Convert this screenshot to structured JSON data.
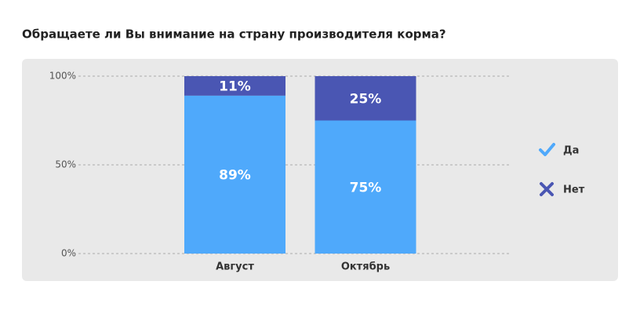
{
  "chart_data": {
    "type": "stacked_bar",
    "title": "Обращаете ли Вы внимание на страну производителя корма?",
    "categories": [
      "Август",
      "Октябрь"
    ],
    "series": [
      {
        "name": "Да",
        "color": "#4fa9fb",
        "values": [
          89,
          75
        ],
        "value_labels": [
          "89%",
          "75%"
        ]
      },
      {
        "name": "Нет",
        "color": "#4a56b3",
        "values": [
          11,
          25
        ],
        "value_labels": [
          "11%",
          "25%"
        ]
      }
    ],
    "ylim": [
      0,
      100
    ],
    "yticks": [
      {
        "value": 0,
        "label": "0%"
      },
      {
        "value": 50,
        "label": "50%"
      },
      {
        "value": 100,
        "label": "100%"
      }
    ],
    "grid": true,
    "legend": "right"
  }
}
